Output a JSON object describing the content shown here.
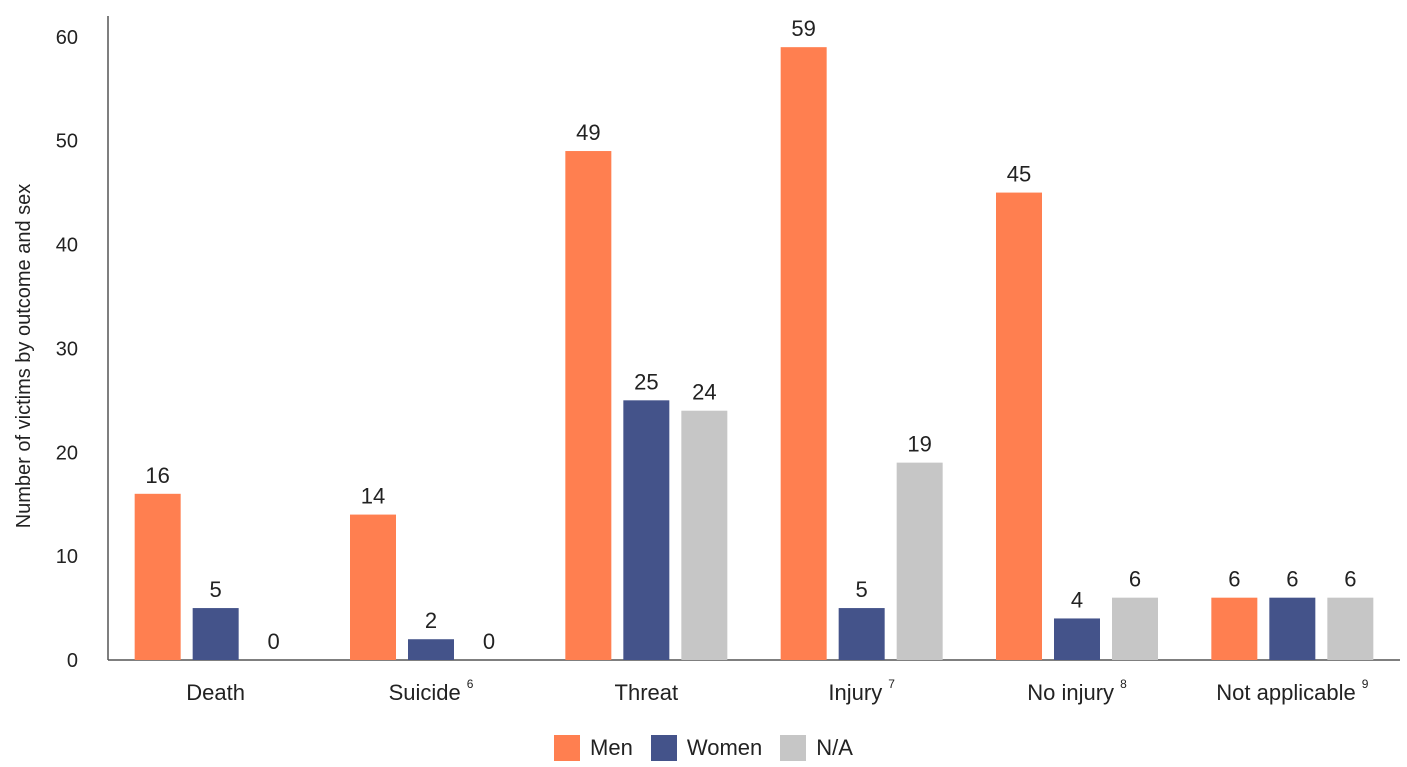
{
  "chart_data": {
    "type": "bar",
    "ylabel": "Number of victims by outcome and sex",
    "xlabel": "",
    "ylim": [
      0,
      62
    ],
    "yticks": [
      0,
      10,
      20,
      30,
      40,
      50,
      60
    ],
    "categories": [
      {
        "label": "Death",
        "sup": ""
      },
      {
        "label": "Suicide",
        "sup": "6"
      },
      {
        "label": "Threat",
        "sup": ""
      },
      {
        "label": "Injury",
        "sup": "7"
      },
      {
        "label": "No injury",
        "sup": "8"
      },
      {
        "label": "Not applicable",
        "sup": "9"
      }
    ],
    "series": [
      {
        "name": "Men",
        "color": "#FF7F50",
        "values": [
          16,
          14,
          49,
          59,
          45,
          6
        ]
      },
      {
        "name": "Women",
        "color": "#44538A",
        "values": [
          5,
          2,
          25,
          5,
          4,
          6
        ]
      },
      {
        "name": "N/A",
        "color": "#C6C6C6",
        "values": [
          0,
          0,
          24,
          19,
          6,
          6
        ]
      }
    ],
    "legend_position": "bottom-center",
    "grid": false
  }
}
